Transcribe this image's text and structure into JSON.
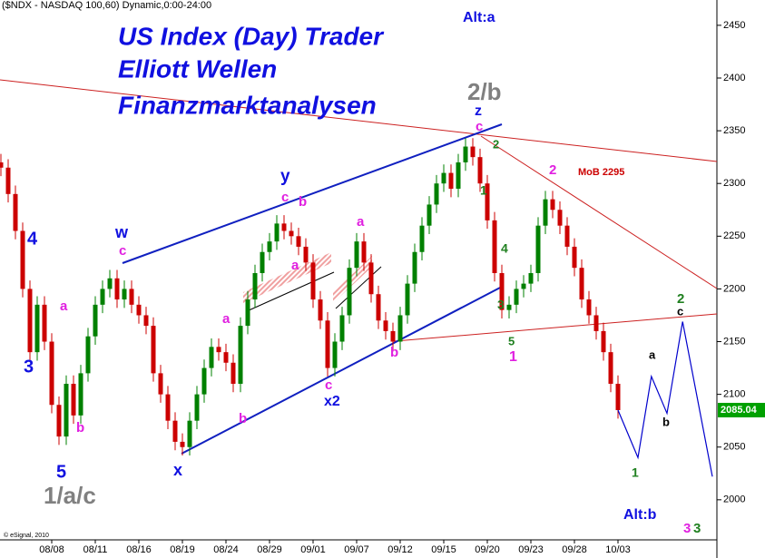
{
  "chart_data": {
    "type": "candlestick",
    "header": "($NDX - NASDAQ 100,60) Dynamic,0:00-24:00",
    "credit": "© eSignal, 2010",
    "up_color": "#008000",
    "down_color": "#cc0000",
    "categories": [
      null,
      null,
      null,
      null,
      null,
      null,
      null,
      "08/08",
      null,
      null,
      null,
      null,
      null,
      "08/11",
      null,
      null,
      null,
      null,
      null,
      "08/16",
      null,
      null,
      null,
      null,
      null,
      "08/19",
      null,
      null,
      null,
      null,
      null,
      "08/24",
      null,
      null,
      null,
      null,
      null,
      "08/29",
      null,
      null,
      null,
      null,
      null,
      "09/01",
      null,
      null,
      null,
      null,
      null,
      "09/07",
      null,
      null,
      null,
      null,
      null,
      "09/12",
      null,
      null,
      null,
      null,
      null,
      "09/15",
      null,
      null,
      null,
      null,
      null,
      "09/20",
      null,
      null,
      null,
      null,
      null,
      "09/23",
      null,
      null,
      null,
      null,
      null,
      "09/28",
      null,
      null,
      null,
      null,
      null,
      "10/03"
    ],
    "open": [
      2320,
      2315,
      2290,
      2255,
      2200,
      2140,
      2185,
      2150,
      2090,
      2060,
      2110,
      2080,
      2120,
      2155,
      2185,
      2200,
      2210,
      2190,
      2200,
      2185,
      2175,
      2165,
      2120,
      2100,
      2075,
      2055,
      2050,
      2075,
      2100,
      2125,
      2145,
      2140,
      2130,
      2110,
      2165,
      2190,
      2215,
      2235,
      2245,
      2262,
      2255,
      2250,
      2240,
      2225,
      2190,
      2170,
      2125,
      2150,
      2175,
      2220,
      2245,
      2225,
      2195,
      2170,
      2160,
      2150,
      2175,
      2205,
      2235,
      2260,
      2280,
      2300,
      2310,
      2295,
      2320,
      2335,
      2325,
      2300,
      2265,
      2215,
      2180,
      2185,
      2200,
      2205,
      2215,
      2260,
      2285,
      2275,
      2260,
      2240,
      2220,
      2190,
      2175,
      2160,
      2140,
      2110
    ],
    "high": [
      2328,
      2323,
      2298,
      2263,
      2208,
      2193,
      2193,
      2158,
      2098,
      2118,
      2118,
      2128,
      2163,
      2193,
      2208,
      2218,
      2218,
      2208,
      2208,
      2193,
      2183,
      2173,
      2128,
      2108,
      2083,
      2063,
      2083,
      2108,
      2133,
      2153,
      2153,
      2148,
      2138,
      2173,
      2198,
      2223,
      2243,
      2253,
      2270,
      2270,
      2263,
      2258,
      2248,
      2233,
      2198,
      2178,
      2158,
      2183,
      2228,
      2253,
      2253,
      2233,
      2203,
      2178,
      2168,
      2183,
      2213,
      2243,
      2268,
      2288,
      2308,
      2318,
      2318,
      2328,
      2343,
      2343,
      2333,
      2308,
      2273,
      2223,
      2193,
      2208,
      2213,
      2223,
      2268,
      2293,
      2293,
      2283,
      2268,
      2248,
      2228,
      2198,
      2183,
      2168,
      2148,
      2118
    ],
    "low": [
      2307,
      2282,
      2247,
      2192,
      2132,
      2132,
      2142,
      2082,
      2052,
      2052,
      2072,
      2072,
      2112,
      2147,
      2177,
      2192,
      2182,
      2182,
      2177,
      2167,
      2157,
      2112,
      2092,
      2067,
      2047,
      2042,
      2042,
      2067,
      2092,
      2117,
      2132,
      2122,
      2102,
      2102,
      2157,
      2182,
      2207,
      2227,
      2237,
      2247,
      2242,
      2232,
      2217,
      2182,
      2162,
      2117,
      2117,
      2142,
      2167,
      2212,
      2217,
      2187,
      2162,
      2152,
      2142,
      2142,
      2167,
      2197,
      2227,
      2252,
      2272,
      2292,
      2287,
      2287,
      2312,
      2317,
      2292,
      2257,
      2207,
      2172,
      2172,
      2177,
      2192,
      2197,
      2207,
      2252,
      2267,
      2252,
      2232,
      2212,
      2182,
      2167,
      2152,
      2132,
      2102,
      2077
    ],
    "close": [
      2315,
      2290,
      2255,
      2200,
      2140,
      2185,
      2150,
      2090,
      2060,
      2110,
      2080,
      2120,
      2155,
      2185,
      2200,
      2210,
      2190,
      2200,
      2185,
      2175,
      2165,
      2120,
      2100,
      2075,
      2055,
      2050,
      2075,
      2100,
      2125,
      2145,
      2140,
      2130,
      2110,
      2165,
      2190,
      2215,
      2235,
      2245,
      2262,
      2255,
      2250,
      2240,
      2225,
      2190,
      2170,
      2125,
      2150,
      2175,
      2220,
      2245,
      2225,
      2195,
      2170,
      2160,
      2150,
      2175,
      2205,
      2235,
      2260,
      2280,
      2300,
      2310,
      2295,
      2320,
      2335,
      2325,
      2300,
      2265,
      2215,
      2180,
      2185,
      2200,
      2205,
      2215,
      2260,
      2285,
      2275,
      2260,
      2240,
      2220,
      2190,
      2175,
      2160,
      2140,
      2110,
      2085.04
    ],
    "projection": {
      "color": "#0000cc",
      "x": [
        85,
        87.75,
        89.6,
        91.75,
        93.9,
        98
      ],
      "values": [
        2085.04,
        2040,
        2117,
        2082,
        2169,
        2022
      ]
    },
    "ylim": [
      1962,
      2474
    ],
    "yticks": [
      2000,
      2050,
      2100,
      2150,
      2200,
      2250,
      2300,
      2350,
      2400,
      2450
    ],
    "last_price_color": "#00a000",
    "annotations": [
      {
        "text": "US Index (Day) Trader",
        "color": "#1010e0"
      },
      {
        "text": "Elliott Wellen",
        "color": "#1010e0"
      },
      {
        "text": "Finanzmarktanalysen",
        "color": "#1010e0"
      },
      {
        "text": "Alt:a",
        "color": "#1010e0"
      },
      {
        "text": "2/b",
        "color": "#808080"
      },
      {
        "text": "z",
        "color": "#1010e0"
      },
      {
        "text": "c",
        "color": "#e020e0"
      },
      {
        "text": "2",
        "color": "#208020"
      },
      {
        "text": "1",
        "color": "#208020"
      },
      {
        "text": "2",
        "color": "#e020e0"
      },
      {
        "text": "MoB 2295",
        "color": "#cc0000"
      },
      {
        "text": "y",
        "color": "#1010e0"
      },
      {
        "text": "c",
        "color": "#e020e0"
      },
      {
        "text": "b",
        "color": "#e020e0"
      },
      {
        "text": "w",
        "color": "#1010e0"
      },
      {
        "text": "c",
        "color": "#e020e0"
      },
      {
        "text": "a",
        "color": "#e020e0"
      },
      {
        "text": "a",
        "color": "#e020e0"
      },
      {
        "text": "4",
        "color": "#1010e0"
      },
      {
        "text": "a",
        "color": "#e020e0"
      },
      {
        "text": "3",
        "color": "#1010e0"
      },
      {
        "text": "b",
        "color": "#e020e0"
      },
      {
        "text": "5",
        "color": "#1010e0"
      },
      {
        "text": "1/a/c",
        "color": "#808080"
      },
      {
        "text": "a",
        "color": "#e020e0"
      },
      {
        "text": "b",
        "color": "#e020e0"
      },
      {
        "text": "x",
        "color": "#1010e0"
      },
      {
        "text": "c",
        "color": "#e020e0"
      },
      {
        "text": "x2",
        "color": "#1010e0"
      },
      {
        "text": "b",
        "color": "#e020e0"
      },
      {
        "text": "4",
        "color": "#208020"
      },
      {
        "text": "3",
        "color": "#208020"
      },
      {
        "text": "5",
        "color": "#208020"
      },
      {
        "text": "1",
        "color": "#e020e0"
      },
      {
        "text": "2",
        "color": "#208020"
      },
      {
        "text": "c",
        "color": "#000000"
      },
      {
        "text": "a",
        "color": "#000000"
      },
      {
        "text": "b",
        "color": "#000000"
      },
      {
        "text": "1",
        "color": "#208020"
      },
      {
        "text": "Alt:b",
        "color": "#1010e0"
      },
      {
        "text": "3",
        "color": "#e020e0"
      },
      {
        "text": "3",
        "color": "#208020"
      }
    ]
  }
}
